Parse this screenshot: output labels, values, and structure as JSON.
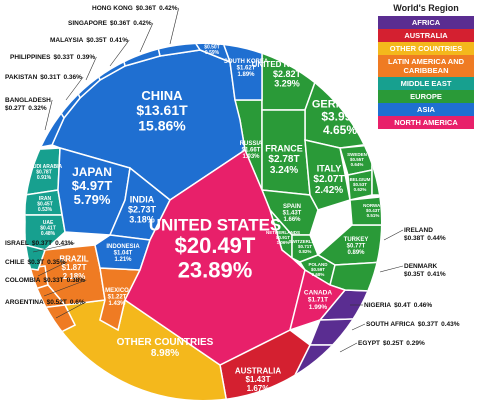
{
  "chart_data": {
    "type": "voronoi-treemap",
    "legend_title": "World's Region",
    "series": [
      {
        "name": "AFRICA",
        "color": "#5a2d91",
        "items": [
          {
            "name": "NIGERIA",
            "value": 0.4,
            "value_label": "$0.4T",
            "share": 0.46,
            "share_label": "0.46%"
          },
          {
            "name": "SOUTH AFRICA",
            "value": 0.37,
            "value_label": "$0.37T",
            "share": 0.43,
            "share_label": "0.43%"
          },
          {
            "name": "EGYPT",
            "value": 0.25,
            "value_label": "$0.25T",
            "share": 0.29,
            "share_label": "0.29%"
          }
        ]
      },
      {
        "name": "AUSTRALIA",
        "color": "#d42030",
        "items": [
          {
            "name": "AUSTRALIA",
            "value": 1.43,
            "value_label": "$1.43T",
            "share": 1.67,
            "share_label": "1.67%"
          }
        ]
      },
      {
        "name": "OTHER COUNTRIES",
        "color": "#f4b81c",
        "items": [
          {
            "name": "OTHER COUNTRIES",
            "share": 8.98,
            "share_label": "8.98%"
          }
        ]
      },
      {
        "name": "LATIN AMERICA AND CARIBBEAN",
        "color": "#ef7b23",
        "items": [
          {
            "name": "BRAZIL",
            "value": 1.87,
            "value_label": "$1.87T",
            "share": 2.18,
            "share_label": "2.18%"
          },
          {
            "name": "MEXICO",
            "value": 1.22,
            "value_label": "$1.22T",
            "share": 1.43,
            "share_label": "1.43%"
          },
          {
            "name": "CHILE",
            "value": 0.3,
            "value_label": "$0.3T",
            "share": 0.35,
            "share_label": "0.35%"
          },
          {
            "name": "COLOMBIA",
            "value": 0.33,
            "value_label": "$0.33T",
            "share": 0.38,
            "share_label": "0.38%"
          },
          {
            "name": "ARGENTINA",
            "value": 0.52,
            "value_label": "$0.52T",
            "share": 0.6,
            "share_label": "0.6%"
          }
        ]
      },
      {
        "name": "MIDDLE EAST",
        "color": "#17a08f",
        "items": [
          {
            "name": "SAUDI ARABIA",
            "value": 0.78,
            "value_label": "$0.78T",
            "share": 0.91,
            "share_label": "0.91%"
          },
          {
            "name": "IRAN",
            "value": 0.45,
            "value_label": "$0.45T",
            "share": 0.53,
            "share_label": "0.53%"
          },
          {
            "name": "UAE",
            "value": 0.41,
            "value_label": "$0.41T",
            "share": 0.48,
            "share_label": "0.48%"
          },
          {
            "name": "ISRAEL",
            "value": 0.37,
            "value_label": "$0.37T",
            "share": 0.43,
            "share_label": "0.43%"
          }
        ]
      },
      {
        "name": "EUROPE",
        "color": "#2a9a38",
        "items": [
          {
            "name": "RUSSIA",
            "value": 1.66,
            "value_label": "$1.66T",
            "share": 1.93,
            "share_label": "1.93%"
          },
          {
            "name": "UNITED KINGDOM",
            "value": 2.82,
            "value_label": "$2.82T",
            "share": 3.29,
            "share_label": "3.29%"
          },
          {
            "name": "GERMANY",
            "value": 3.99,
            "value_label": "$3.99T",
            "share": 4.65,
            "share_label": "4.65%"
          },
          {
            "name": "FRANCE",
            "value": 2.78,
            "value_label": "$2.78T",
            "share": 3.24,
            "share_label": "3.24%"
          },
          {
            "name": "ITALY",
            "value": 2.07,
            "value_label": "$2.07T",
            "share": 2.42,
            "share_label": "2.42%"
          },
          {
            "name": "SPAIN",
            "value": 1.43,
            "value_label": "$1.43T",
            "share": 1.66,
            "share_label": "1.66%"
          },
          {
            "name": "NETHERLANDS",
            "value": 0.91,
            "value_label": "$0.91T",
            "share": 1.06,
            "share_label": "1.06%"
          },
          {
            "name": "SWITZERLAND",
            "value": 0.71,
            "value_label": "$0.71T",
            "share": 0.82,
            "share_label": "0.82%"
          },
          {
            "name": "TURKEY",
            "value": 0.77,
            "value_label": "$0.77T",
            "share": 0.89,
            "share_label": "0.89%"
          },
          {
            "name": "POLAND",
            "value": 0.59,
            "value_label": "$0.59T",
            "share": 0.68,
            "share_label": "0.68%"
          },
          {
            "name": "SWEDEN",
            "value": 0.55,
            "value_label": "$0.55T",
            "share": 0.64,
            "share_label": "0.64%"
          },
          {
            "name": "BELGIUM",
            "value": 0.53,
            "value_label": "$0.53T",
            "share": 0.62,
            "share_label": "0.62%"
          },
          {
            "name": "AUSTRIA",
            "value": 0.46,
            "value_label": "$0.46T",
            "share": 0.53,
            "share_label": "0.53%"
          },
          {
            "name": "NORWAY",
            "value": 0.43,
            "value_label": "$0.43T",
            "share": 0.51,
            "share_label": "0.51%"
          },
          {
            "name": "IRELAND",
            "value": 0.38,
            "value_label": "$0.38T",
            "share": 0.44,
            "share_label": "0.44%"
          },
          {
            "name": "DENMARK",
            "value": 0.35,
            "value_label": "$0.35T",
            "share": 0.41,
            "share_label": "0.41%"
          }
        ]
      },
      {
        "name": "ASIA",
        "color": "#1f6fd1",
        "items": [
          {
            "name": "CHINA",
            "value": 13.61,
            "value_label": "$13.61T",
            "share": 15.86,
            "share_label": "15.86%"
          },
          {
            "name": "JAPAN",
            "value": 4.97,
            "value_label": "$4.97T",
            "share": 5.79,
            "share_label": "5.79%"
          },
          {
            "name": "INDIA",
            "value": 2.73,
            "value_label": "$2.73T",
            "share": 3.18,
            "share_label": "3.18%"
          },
          {
            "name": "SOUTH KOREA",
            "value": 1.62,
            "value_label": "$1.62T",
            "share": 1.89,
            "share_label": "1.89%"
          },
          {
            "name": "INDONESIA",
            "value": 1.04,
            "value_label": "$1.04T",
            "share": 1.21,
            "share_label": "1.21%"
          },
          {
            "name": "THAILAND",
            "value": 0.5,
            "value_label": "$0.50T",
            "share": 0.59,
            "share_label": "0.59%"
          },
          {
            "name": "HONG KONG",
            "value": 0.36,
            "value_label": "$0.36T",
            "share": 0.42,
            "share_label": "0.42%"
          },
          {
            "name": "SINGAPORE",
            "value": 0.36,
            "value_label": "$0.36T",
            "share": 0.42,
            "share_label": "0.42%"
          },
          {
            "name": "MALAYSIA",
            "value": 0.35,
            "value_label": "$0.35T",
            "share": 0.41,
            "share_label": "0.41%"
          },
          {
            "name": "PHILIPPINES",
            "value": 0.33,
            "value_label": "$0.33T",
            "share": 0.39,
            "share_label": "0.39%"
          },
          {
            "name": "PAKISTAN",
            "value": 0.31,
            "value_label": "$0.31T",
            "share": 0.36,
            "share_label": "0.36%"
          },
          {
            "name": "BANGLADESH",
            "value": 0.27,
            "value_label": "$0.27T",
            "share": 0.32,
            "share_label": "0.32%"
          }
        ]
      },
      {
        "name": "NORTH AMERICA",
        "color": "#e8206a",
        "items": [
          {
            "name": "UNITED STATES",
            "value": 20.49,
            "value_label": "$20.49T",
            "share": 23.89,
            "share_label": "23.89%"
          },
          {
            "name": "CANADA",
            "value": 1.71,
            "value_label": "$1.71T",
            "share": 1.99,
            "share_label": "1.99%"
          }
        ]
      }
    ]
  }
}
